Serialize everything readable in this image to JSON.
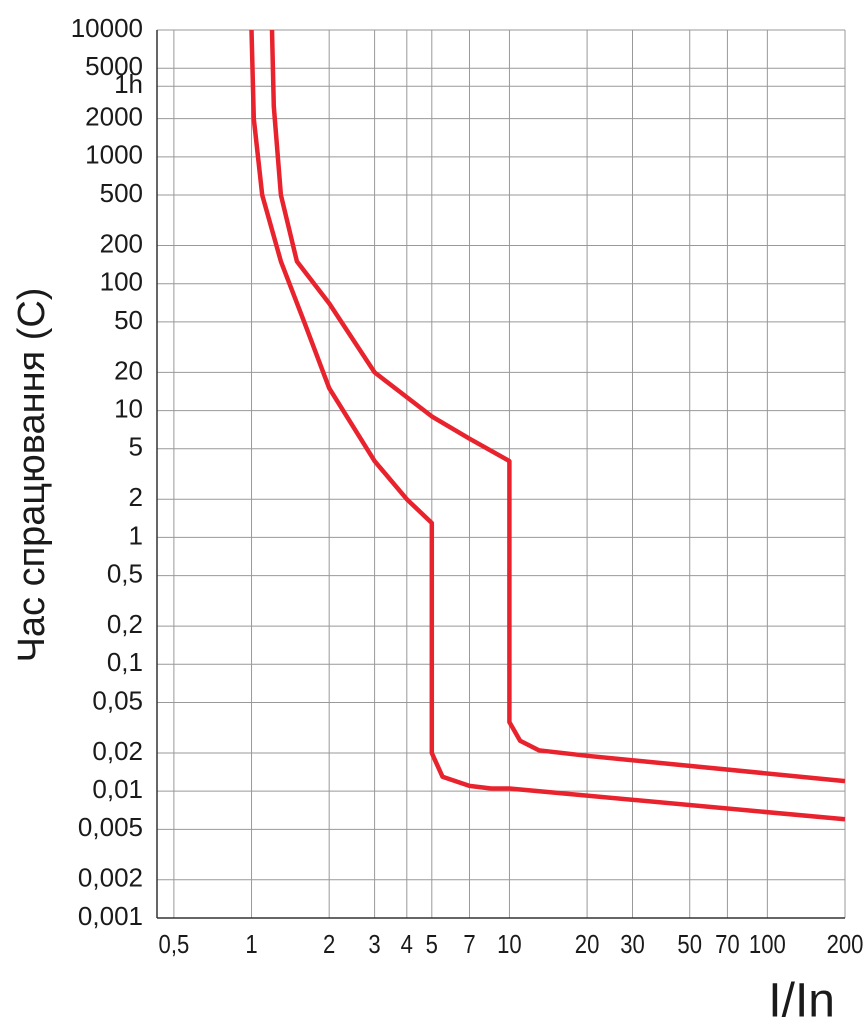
{
  "chart_data": {
    "type": "line",
    "xlabel": "I/In",
    "ylabel": "Час спрацювання (С)",
    "xscale": "log",
    "yscale": "log",
    "grid": true,
    "xlim": [
      0.43,
      200
    ],
    "ylim": [
      0.001,
      10000
    ],
    "xticks": [
      {
        "value": 0.5,
        "label": "0,5"
      },
      1,
      2,
      3,
      4,
      5,
      7,
      10,
      20,
      30,
      50,
      70,
      100,
      200
    ],
    "yticks": [
      10000,
      5000,
      {
        "value": 3600,
        "label": "1h"
      },
      2000,
      1000,
      500,
      200,
      100,
      50,
      20,
      10,
      5,
      2,
      1,
      {
        "value": 0.5,
        "label": "0,5"
      },
      {
        "value": 0.2,
        "label": "0,2"
      },
      {
        "value": 0.1,
        "label": "0,1"
      },
      {
        "value": 0.05,
        "label": "0,05"
      },
      {
        "value": 0.02,
        "label": "0,02"
      },
      {
        "value": 0.01,
        "label": "0,01"
      },
      {
        "value": 0.005,
        "label": "0,005"
      },
      {
        "value": 0.002,
        "label": "0,002"
      },
      {
        "value": 0.001,
        "label": "0,001"
      }
    ],
    "series": [
      {
        "color": "#e8232d",
        "x": [
          1.0,
          1.02,
          1.1,
          1.3,
          1.6,
          2,
          3,
          4,
          5,
          5,
          5.5,
          7,
          8.5,
          10,
          200
        ],
        "values": [
          10000,
          2000,
          500,
          150,
          50,
          15,
          4,
          2,
          1.3,
          0.02,
          0.013,
          0.011,
          0.0105,
          0.0105,
          0.006
        ]
      },
      {
        "color": "#e8232d",
        "x": [
          1.2,
          1.22,
          1.3,
          1.5,
          2,
          3,
          5,
          7,
          10,
          10,
          11,
          13,
          20,
          200
        ],
        "values": [
          10000,
          2500,
          500,
          150,
          70,
          20,
          9,
          6,
          4,
          0.035,
          0.025,
          0.021,
          0.019,
          0.012
        ]
      }
    ]
  }
}
